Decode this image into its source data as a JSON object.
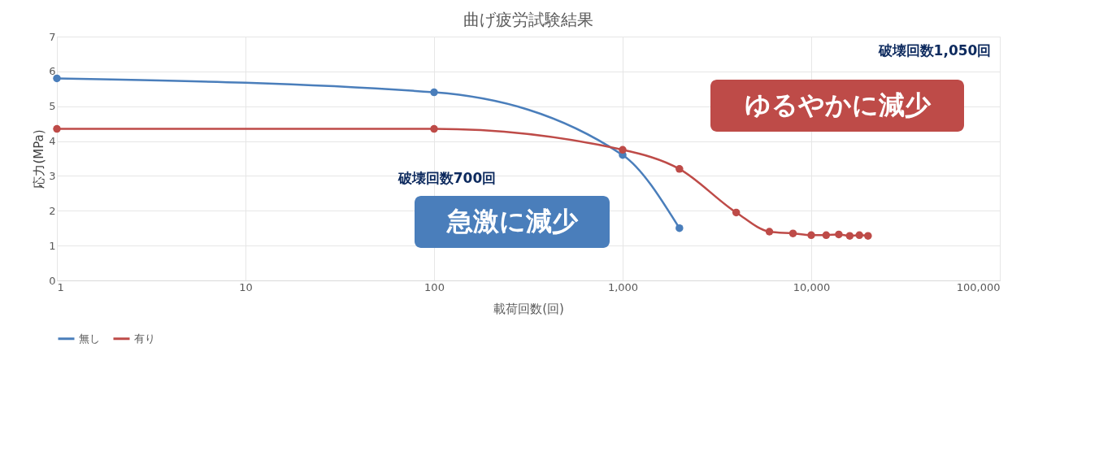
{
  "chart_data": {
    "type": "line",
    "title": "曲げ疲労試験結果",
    "xlabel": "載荷回数(回)",
    "ylabel": "応力(MPa)",
    "log": "x",
    "xlim": [
      1,
      100000
    ],
    "xticks": [
      1,
      10,
      100,
      {
        "value": 1000,
        "label": "1,000"
      },
      {
        "value": 10000,
        "label": "10,000"
      },
      {
        "value": 100000,
        "label": "100,000"
      }
    ],
    "ylim": [
      0,
      7
    ],
    "yticks": [
      0,
      1,
      2,
      3,
      4,
      5,
      6,
      7
    ],
    "grid": true,
    "legend": "bottom",
    "marker": "circle",
    "line_style": "solid",
    "series": [
      {
        "name": "無し",
        "color": "#4a7ebb",
        "x": [
          1,
          100,
          1000,
          2000
        ],
        "values": [
          5.8,
          5.4,
          3.6,
          1.5
        ]
      },
      {
        "name": "有り",
        "color": "#be4b48",
        "x": [
          1,
          100,
          1000,
          2000,
          4000,
          6000,
          8000,
          10000,
          12000,
          14000,
          16000,
          18000,
          20000
        ],
        "values": [
          4.35,
          4.35,
          3.75,
          3.2,
          1.95,
          1.4,
          1.35,
          1.3,
          1.3,
          1.32,
          1.28,
          1.3,
          1.28
        ]
      }
    ],
    "annotations": [
      "破壊回数700回",
      "急激に減少",
      "破壊回数1,050回",
      "ゆるやかに減少"
    ]
  }
}
